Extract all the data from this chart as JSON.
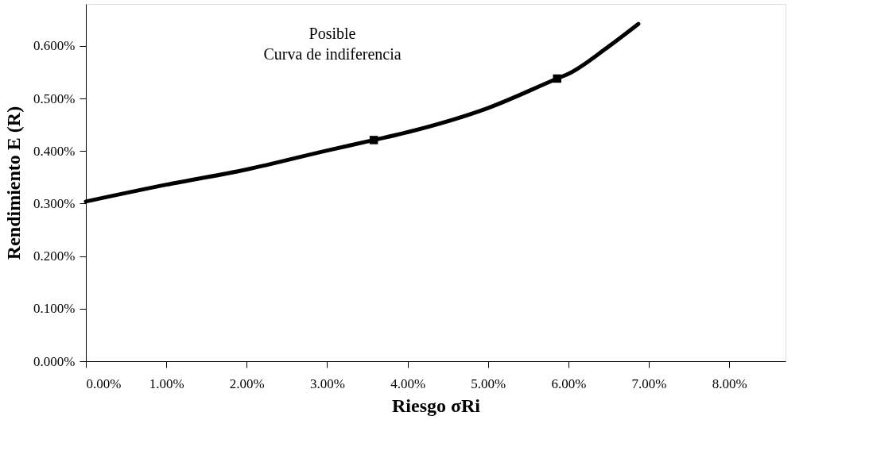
{
  "chart_data": {
    "type": "line",
    "xlabel": "Riesgo σRi",
    "ylabel": "Rendimiento E (R)",
    "annotations": [
      "Posible\nCurva de indiferencia"
    ],
    "xlim": [
      0,
      8.7
    ],
    "ylim": [
      0,
      0.68
    ],
    "xticks": [
      {
        "value": 0,
        "label": "0.00%"
      },
      {
        "value": 1,
        "label": "1.00%"
      },
      {
        "value": 2,
        "label": "2.00%"
      },
      {
        "value": 3,
        "label": "3.00%"
      },
      {
        "value": 4,
        "label": "4.00%"
      },
      {
        "value": 5,
        "label": "5.00%"
      },
      {
        "value": 6,
        "label": "6.00%"
      },
      {
        "value": 7,
        "label": "7.00%"
      },
      {
        "value": 8,
        "label": "8.00%"
      }
    ],
    "yticks": [
      {
        "value": 0,
        "label": "0.000%"
      },
      {
        "value": 0.1,
        "label": "0.100%"
      },
      {
        "value": 0.2,
        "label": "0.200%"
      },
      {
        "value": 0.3,
        "label": "0.300%"
      },
      {
        "value": 0.4,
        "label": "0.400%"
      },
      {
        "value": 0.5,
        "label": "0.500%"
      },
      {
        "value": 0.6,
        "label": "0.600%"
      }
    ],
    "grid": false,
    "legend": false,
    "series": [
      {
        "color": "#000000",
        "marker": "none",
        "x": [
          0,
          1,
          2,
          3,
          3.58,
          4,
          5,
          5.86,
          6,
          6.5,
          6.87
        ],
        "values": [
          0.304,
          0.336,
          0.365,
          0.401,
          0.421,
          0.436,
          0.482,
          0.538,
          0.547,
          0.599,
          0.642
        ]
      },
      {
        "type": "scatter",
        "color": "#000000",
        "marker": "square",
        "x": [
          3.58,
          5.86
        ],
        "values": [
          0.421,
          0.538
        ]
      }
    ]
  }
}
